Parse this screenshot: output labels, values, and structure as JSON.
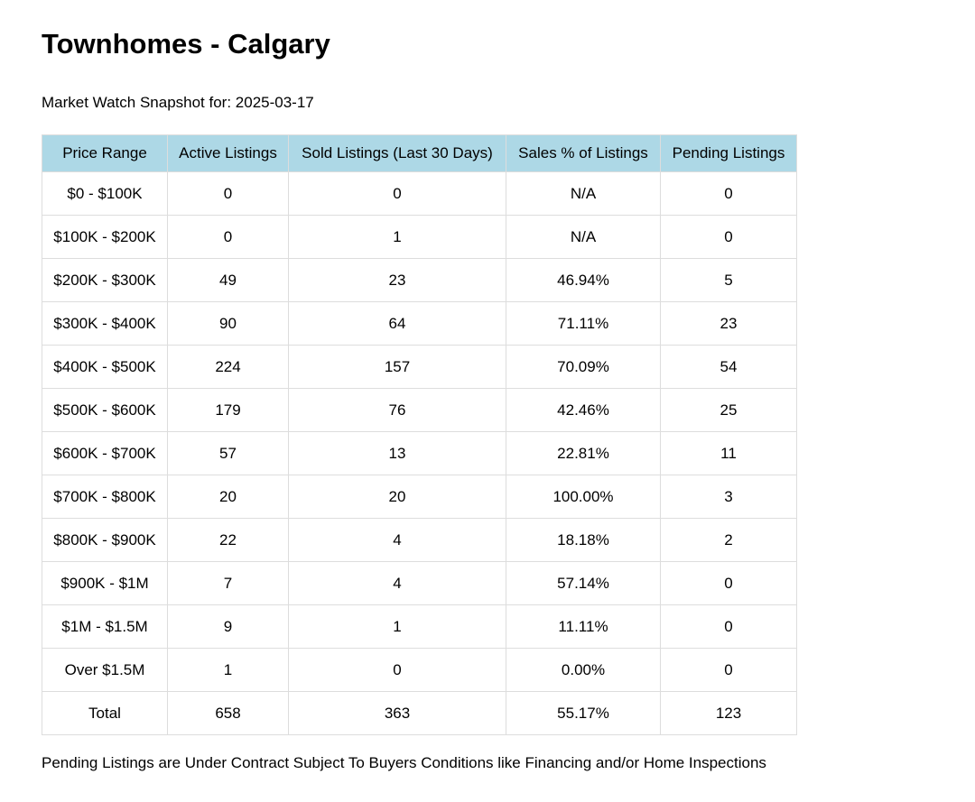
{
  "title": "Townhomes - Calgary",
  "snapshot": "Market Watch Snapshot for: 2025-03-17",
  "table": {
    "headers": [
      "Price Range",
      "Active Listings",
      "Sold Listings (Last 30 Days)",
      "Sales % of Listings",
      "Pending Listings"
    ],
    "rows": [
      [
        "$0 - $100K",
        "0",
        "0",
        "N/A",
        "0"
      ],
      [
        "$100K - $200K",
        "0",
        "1",
        "N/A",
        "0"
      ],
      [
        "$200K - $300K",
        "49",
        "23",
        "46.94%",
        "5"
      ],
      [
        "$300K - $400K",
        "90",
        "64",
        "71.11%",
        "23"
      ],
      [
        "$400K - $500K",
        "224",
        "157",
        "70.09%",
        "54"
      ],
      [
        "$500K - $600K",
        "179",
        "76",
        "42.46%",
        "25"
      ],
      [
        "$600K - $700K",
        "57",
        "13",
        "22.81%",
        "11"
      ],
      [
        "$700K - $800K",
        "20",
        "20",
        "100.00%",
        "3"
      ],
      [
        "$800K - $900K",
        "22",
        "4",
        "18.18%",
        "2"
      ],
      [
        "$900K - $1M",
        "7",
        "4",
        "57.14%",
        "0"
      ],
      [
        "$1M - $1.5M",
        "9",
        "1",
        "11.11%",
        "0"
      ],
      [
        "Over $1.5M",
        "1",
        "0",
        "0.00%",
        "0"
      ],
      [
        "Total",
        "658",
        "363",
        "55.17%",
        "123"
      ]
    ]
  },
  "footnote": "Pending Listings are Under Contract Subject To Buyers Conditions like Financing and/or Home Inspections",
  "colors": {
    "header_background": "#add8e6",
    "border": "#dddddd"
  }
}
